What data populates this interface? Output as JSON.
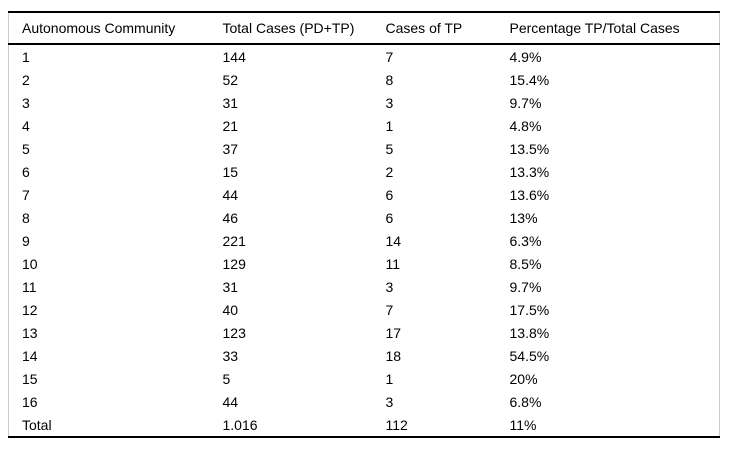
{
  "chart_data": {
    "type": "table",
    "columns": [
      "Autonomous Community",
      "Total Cases (PD+TP)",
      "Cases of TP",
      "Percentage TP/Total Cases"
    ],
    "rows": [
      [
        "1",
        "144",
        "7",
        "4.9%"
      ],
      [
        "2",
        "52",
        "8",
        "15.4%"
      ],
      [
        "3",
        "31",
        "3",
        "9.7%"
      ],
      [
        "4",
        "21",
        "1",
        "4.8%"
      ],
      [
        "5",
        "37",
        "5",
        "13.5%"
      ],
      [
        "6",
        "15",
        "2",
        "13.3%"
      ],
      [
        "7",
        "44",
        "6",
        "13.6%"
      ],
      [
        "8",
        "46",
        "6",
        "13%"
      ],
      [
        "9",
        "221",
        "14",
        "6.3%"
      ],
      [
        "10",
        "129",
        "11",
        "8.5%"
      ],
      [
        "11",
        "31",
        "3",
        "9.7%"
      ],
      [
        "12",
        "40",
        "7",
        "17.5%"
      ],
      [
        "13",
        "123",
        "17",
        "13.8%"
      ],
      [
        "14",
        "33",
        "18",
        "54.5%"
      ],
      [
        "15",
        "5",
        "1",
        "20%"
      ],
      [
        "16",
        "44",
        "3",
        "6.8%"
      ]
    ],
    "total_row": [
      "Total",
      "1.016",
      "112",
      "11%"
    ]
  },
  "colors": {
    "text": "#000000",
    "rule_strong": "#000000",
    "rule_light": "#cccccc",
    "background": "#ffffff"
  }
}
